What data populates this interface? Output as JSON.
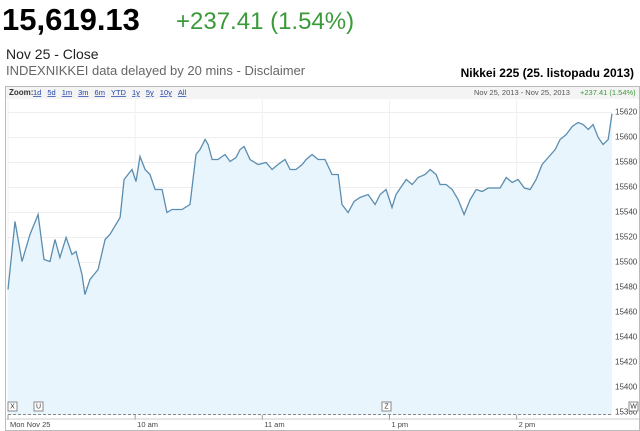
{
  "header": {
    "price": "15,619.13",
    "change": "+237.41 (1.54%)",
    "close_label": "Nov 25 - Close",
    "delay_note": "INDEXNIKKEI data delayed by 20 mins - Disclaimer",
    "chart_title": "Nikkei 225 (25. listopadu 2013)"
  },
  "toolbar": {
    "label": "Zoom:",
    "ranges": [
      "1d",
      "5d",
      "1m",
      "3m",
      "6m",
      "YTD",
      "1y",
      "5y",
      "10y",
      "All"
    ],
    "date_range": "Nov 25, 2013 - Nov 25, 2013",
    "change": "+237.41 (1.54%)"
  },
  "flags": [
    "X",
    "U",
    "Z",
    "W"
  ],
  "chart_data": {
    "type": "area",
    "color": "#5b8db0",
    "fill": "#e9f5fd",
    "grid": true,
    "x": [
      0,
      3.3,
      6.6,
      10.4,
      14.2,
      17,
      19.8,
      22.2,
      24.5,
      27.4,
      30.2,
      32.1,
      34.9,
      36.3,
      38.7,
      42.5,
      45.8,
      48.1,
      52.9,
      54.8,
      56.6,
      58.5,
      60.4,
      62.3,
      64.7,
      67,
      69.4,
      72.7,
      75,
      77.4,
      82.1,
      85.9,
      88.7,
      90.6,
      93,
      94.4,
      96.3,
      99.1,
      102.4,
      104.8,
      107.6,
      109.5,
      111.4,
      114.2,
      118,
      121.8,
      124.6,
      127.4,
      130.7,
      133.1,
      135.9,
      138.8,
      140.7,
      143.5,
      146.3,
      149.6,
      152.9,
      155.8,
      157.6,
      160.5,
      163.3,
      166.1,
      169.9,
      173.2,
      175.6,
      178.4,
      181.2,
      183.1,
      187.9,
      190.7,
      193.5,
      196.8,
      199.2,
      202,
      203.9,
      206.7,
      209.6,
      212.4,
      215.2,
      218.1,
      220.9,
      223.7,
      226.6,
      232.2,
      235.1,
      237.9,
      240.7,
      243.6,
      246.4,
      249.2,
      252,
      254.9,
      258.2,
      260.5,
      263.4,
      266.2,
      269,
      271.4,
      273.8,
      276.1,
      278.5,
      280.8,
      283.2,
      285
    ],
    "values": [
      15478.4,
      15532.8,
      15500.8,
      15522.4,
      15538.4,
      15502.4,
      15500.8,
      15518.4,
      15504,
      15520,
      15506.4,
      15508.8,
      15490.4,
      15474.4,
      15486.4,
      15494.4,
      15518.4,
      15522.4,
      15536,
      15566.4,
      15570.4,
      15574.4,
      15564.8,
      15584.8,
      15574.4,
      15570.4,
      15558.4,
      15558.4,
      15540,
      15542.4,
      15542.4,
      15546.4,
      15586.4,
      15590.4,
      15598.4,
      15594.4,
      15582.4,
      15582.4,
      15586.4,
      15580.8,
      15584,
      15590.4,
      15592.8,
      15582.4,
      15578.4,
      15580,
      15574.4,
      15578.4,
      15582.4,
      15574.4,
      15574.4,
      15578.4,
      15582.4,
      15586.4,
      15582.4,
      15582.4,
      15570.4,
      15570.4,
      15546.4,
      15540,
      15548.8,
      15552,
      15554.4,
      15546.4,
      15554.4,
      15558.4,
      15544,
      15554.4,
      15566.4,
      15562.4,
      15568,
      15570.4,
      15574.4,
      15570.4,
      15562.4,
      15562.4,
      15558.4,
      15550.4,
      15538.4,
      15550.4,
      15558.4,
      15556.8,
      15559.6,
      15559.6,
      15568,
      15564,
      15566.4,
      15559.6,
      15558.4,
      15566.4,
      15578.4,
      15584,
      15590.4,
      15598.4,
      15602.4,
      15608.8,
      15612,
      15610.4,
      15606.4,
      15610.4,
      15600,
      15594.4,
      15598.4,
      15619.13
    ],
    "xlim": [
      0,
      285
    ],
    "xticks": [
      {
        "value": 0,
        "label": "Mon Nov 25"
      },
      {
        "value": 60,
        "label": "10 am"
      },
      {
        "value": 120,
        "label": "11 am"
      },
      {
        "value": 180,
        "label": "1 pm"
      },
      {
        "value": 240,
        "label": "2 pm"
      }
    ],
    "ylim": [
      15378,
      15630
    ],
    "yticks": [
      15380,
      15400,
      15420,
      15440,
      15460,
      15480,
      15500,
      15520,
      15540,
      15560,
      15580,
      15600,
      15620
    ]
  }
}
